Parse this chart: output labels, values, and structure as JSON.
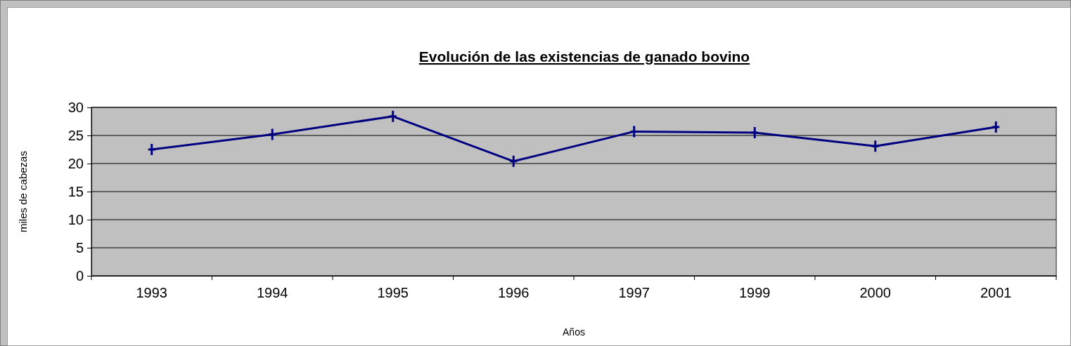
{
  "chart_data": {
    "type": "line",
    "title": "Evolución de las existencias de ganado bovino",
    "xlabel": "Años",
    "ylabel": "miles de cabezas",
    "categories": [
      "1993",
      "1994",
      "1995",
      "1996",
      "1997",
      "1999",
      "2000",
      "2001"
    ],
    "series": [
      {
        "color": "#000080",
        "values": [
          22.5,
          25.2,
          28.4,
          20.4,
          25.7,
          25.5,
          23.1,
          26.5
        ]
      }
    ],
    "ylim": [
      0,
      30
    ],
    "yticks": [
      0,
      5,
      10,
      15,
      20,
      25,
      30
    ],
    "grid": "y",
    "marker": "cross",
    "line_style": "solid"
  }
}
